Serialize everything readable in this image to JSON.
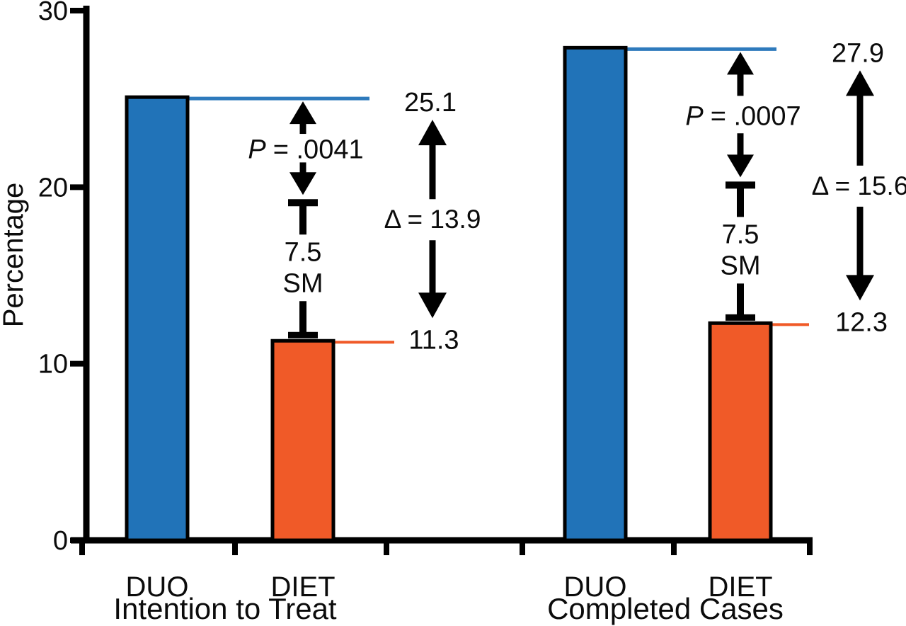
{
  "figure": {
    "background": "#ffffff"
  },
  "chart_data": {
    "type": "bar",
    "title": "",
    "ylabel": "Percentage",
    "ylim": [
      0,
      30
    ],
    "yticks": [
      "0",
      "10",
      "20",
      "30"
    ],
    "grid": false,
    "legend": "none",
    "bar_colors": {
      "DUO": "#2173b8",
      "DIET": "#f05a28"
    },
    "groups": [
      {
        "label": "Intention to Treat",
        "categories": [
          "DUO",
          "DIET"
        ],
        "values": [
          25.1,
          11.3
        ],
        "value_labels": [
          "25.1",
          "11.3"
        ],
        "p_italic": "P",
        "p_rest": "= .0041",
        "bracket_lines": [
          "7.5",
          "SM"
        ],
        "delta_label": "Δ = 13.9"
      },
      {
        "label": "Completed Cases",
        "categories": [
          "DUO",
          "DIET"
        ],
        "values": [
          27.9,
          12.3
        ],
        "value_labels": [
          "27.9",
          "12.3"
        ],
        "p_italic": "P",
        "p_rest": "= .0007",
        "bracket_lines": [
          "7.5",
          "SM"
        ],
        "delta_label": "Δ = 15.6"
      }
    ]
  },
  "colors": {
    "axis": "#000000",
    "annotation": "#000000",
    "duo_reference_line": "#2e7abc",
    "diet_reference_line": "#f05a28"
  }
}
